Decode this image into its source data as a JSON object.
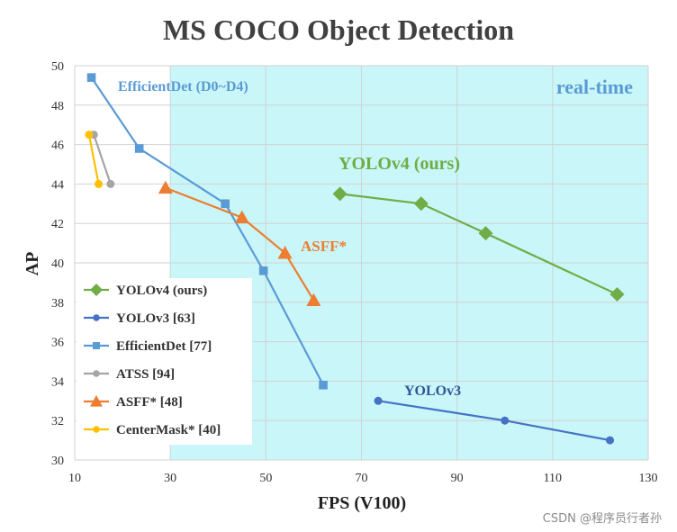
{
  "chart_data": {
    "type": "line",
    "title": "MS COCO Object Detection",
    "xlabel": "FPS (V100)",
    "ylabel": "AP",
    "xlim": [
      10,
      130
    ],
    "ylim": [
      30,
      50
    ],
    "xticks": [
      10,
      30,
      50,
      70,
      90,
      110,
      130
    ],
    "yticks": [
      30,
      32,
      34,
      36,
      38,
      40,
      42,
      44,
      46,
      48,
      50
    ],
    "grid": true,
    "realtime_region": {
      "label": "real-time",
      "x_from": 30,
      "x_to": 130,
      "color": "#c9f6f8"
    },
    "legend_position": "lower-left",
    "series": [
      {
        "name": "YOLOv4 (ours)",
        "label": "YOLOv4 (ours)",
        "color": "#70ad47",
        "marker": "diamond",
        "x": [
          65.5,
          82.5,
          96,
          123.5
        ],
        "y": [
          43.5,
          43.0,
          41.5,
          38.4
        ]
      },
      {
        "name": "YOLOv3 [63]",
        "label": "YOLOv3",
        "color": "#4472c4",
        "marker": "circle",
        "x": [
          73.5,
          100,
          122
        ],
        "y": [
          33.0,
          32.0,
          31.0
        ]
      },
      {
        "name": "EfficientDet [77]",
        "label": "EfficientDet (D0~D4)",
        "color": "#5b9bd5",
        "marker": "square",
        "x": [
          13.5,
          23.5,
          41.5,
          49.5,
          62
        ],
        "y": [
          49.4,
          45.8,
          43.0,
          39.6,
          33.8
        ]
      },
      {
        "name": "ATSS [94]",
        "label": "",
        "color": "#a5a5a5",
        "marker": "circle",
        "x": [
          14,
          17.5
        ],
        "y": [
          46.5,
          44.0
        ]
      },
      {
        "name": "ASFF* [48]",
        "label": "ASFF*",
        "color": "#ed7d31",
        "marker": "triangle",
        "x": [
          29,
          45,
          54,
          60
        ],
        "y": [
          43.8,
          42.3,
          40.5,
          38.1
        ]
      },
      {
        "name": "CenterMask* [40]",
        "label": "",
        "color": "#ffc000",
        "marker": "circle",
        "x": [
          13,
          15
        ],
        "y": [
          46.5,
          44.0
        ]
      }
    ]
  },
  "watermark": "CSDN @程序员行者孙"
}
